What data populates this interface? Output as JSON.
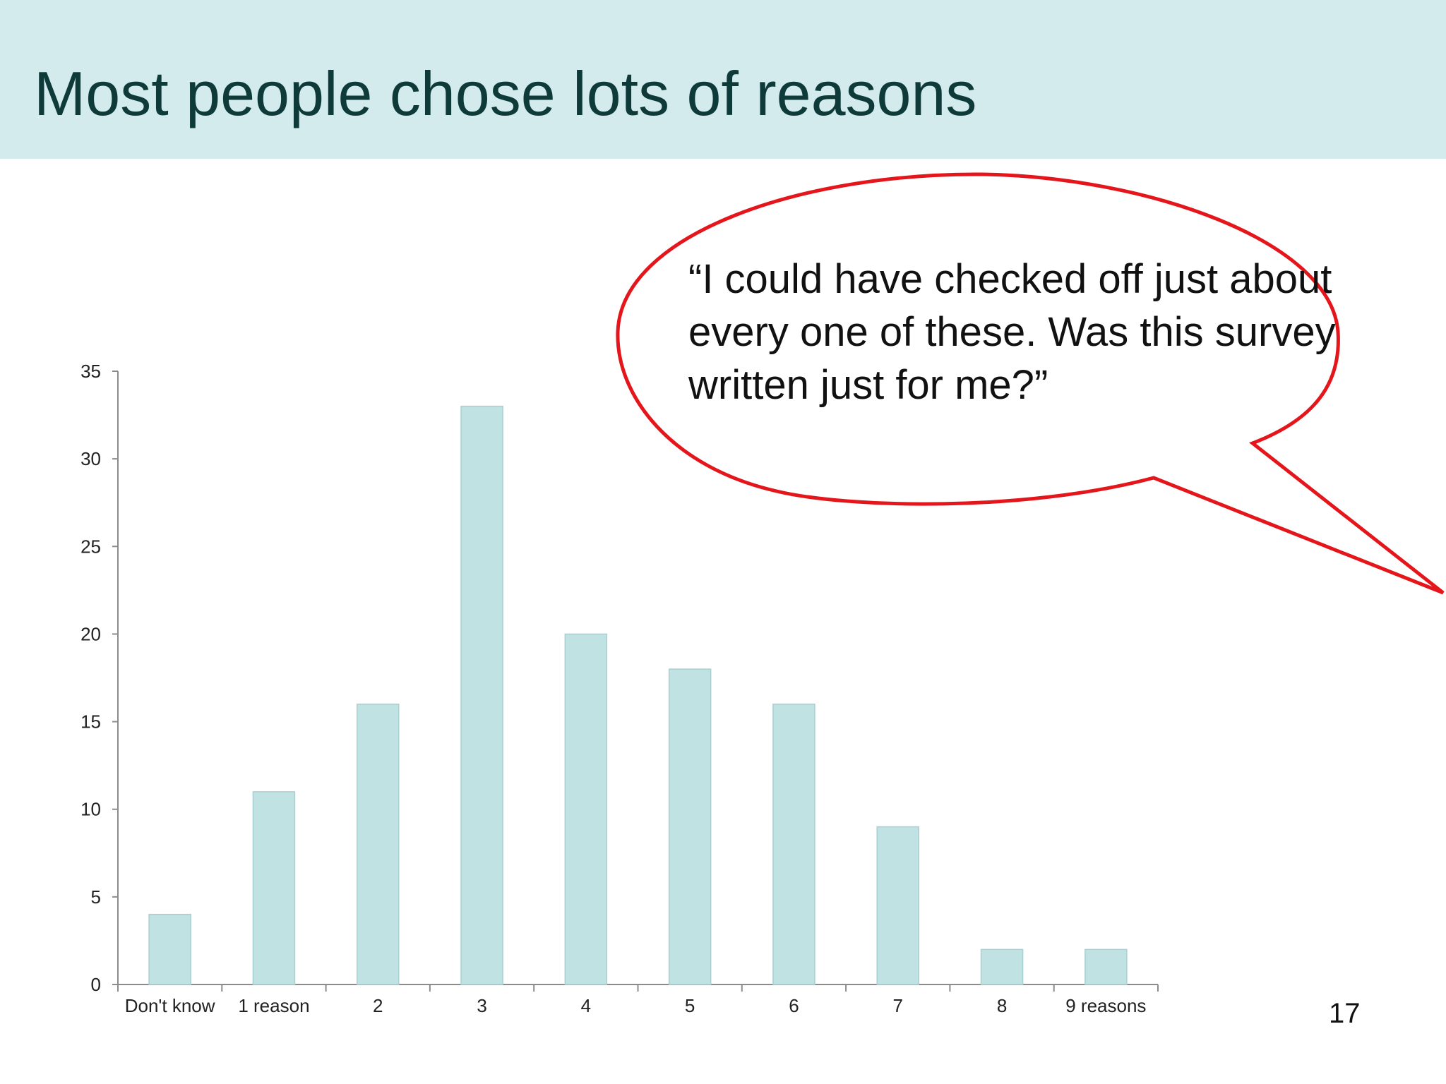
{
  "slide": {
    "title": "Most people chose lots of reasons",
    "quote": "“I could have checked off just about every one of these. Was this survey written just for me?”",
    "page_number": "17"
  },
  "colors": {
    "title_band": "#d3ebec",
    "title_text": "#0e3b3a",
    "bar_fill": "#c0e2e3",
    "bubble_stroke": "#e5161b"
  },
  "chart_data": {
    "type": "bar",
    "categories": [
      "Don't know",
      "1 reason",
      "2",
      "3",
      "4",
      "5",
      "6",
      "7",
      "8",
      "9 reasons"
    ],
    "values": [
      4,
      11,
      16,
      33,
      20,
      18,
      16,
      9,
      2,
      2
    ],
    "title": "",
    "xlabel": "",
    "ylabel": "",
    "ylim": [
      0,
      35
    ],
    "yticks": [
      0,
      5,
      10,
      15,
      20,
      25,
      30,
      35
    ],
    "grid": false,
    "legend": false
  }
}
